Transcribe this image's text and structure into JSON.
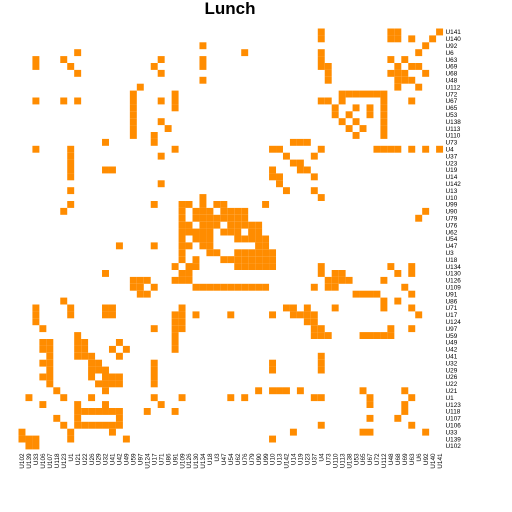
{
  "chart_data": {
    "type": "heatmap",
    "title": "Lunch",
    "xlabel": "",
    "ylabel": "",
    "cell_color": "#ff8c00",
    "background_color": "#ffffff",
    "grid": false,
    "x_tick_labels": [
      "U102",
      "U139",
      "U33",
      "U106",
      "U107",
      "U118",
      "U123",
      "U1",
      "U21",
      "U22",
      "U26",
      "U29",
      "U32",
      "U41",
      "U42",
      "U49",
      "U59",
      "U97",
      "U124",
      "U17",
      "U71",
      "U86",
      "U91",
      "U109",
      "U126",
      "U130",
      "U134",
      "U18",
      "U3",
      "U47",
      "U54",
      "U62",
      "U76",
      "U79",
      "U90",
      "U99",
      "U10",
      "U13",
      "U142",
      "U14",
      "U19",
      "U23",
      "U37",
      "U4",
      "U73",
      "U110",
      "U113",
      "U138",
      "U53",
      "U65",
      "U67",
      "U72",
      "U112",
      "U48",
      "U68",
      "U69",
      "U63",
      "U6",
      "U92",
      "U140",
      "U141"
    ],
    "y_tick_labels": [
      "U141",
      "U140",
      "U92",
      "U6",
      "U63",
      "U69",
      "U68",
      "U48",
      "U112",
      "U72",
      "U67",
      "U65",
      "U53",
      "U138",
      "U113",
      "U110",
      "U73",
      "U4",
      "U37",
      "U23",
      "U19",
      "U14",
      "U142",
      "U13",
      "U10",
      "U99",
      "U90",
      "U79",
      "U76",
      "U62",
      "U54",
      "U47",
      "U3",
      "U18",
      "U134",
      "U130",
      "U126",
      "U109",
      "U91",
      "U86",
      "U71",
      "U17",
      "U124",
      "U97",
      "U59",
      "U49",
      "U42",
      "U41",
      "U32",
      "U29",
      "U26",
      "U22",
      "U21",
      "U1",
      "U123",
      "U118",
      "U107",
      "U106",
      "U33",
      "U139",
      "U102"
    ],
    "cells": [
      [
        0,
        43
      ],
      [
        0,
        53
      ],
      [
        0,
        54
      ],
      [
        0,
        60
      ],
      [
        1,
        43
      ],
      [
        1,
        53
      ],
      [
        1,
        54
      ],
      [
        1,
        56
      ],
      [
        1,
        59
      ],
      [
        2,
        26
      ],
      [
        2,
        58
      ],
      [
        3,
        8
      ],
      [
        3,
        32
      ],
      [
        3,
        43
      ],
      [
        3,
        57
      ],
      [
        4,
        2
      ],
      [
        4,
        6
      ],
      [
        4,
        20
      ],
      [
        4,
        26
      ],
      [
        4,
        43
      ],
      [
        4,
        53
      ],
      [
        4,
        55
      ],
      [
        5,
        2
      ],
      [
        5,
        7
      ],
      [
        5,
        19
      ],
      [
        5,
        26
      ],
      [
        5,
        43
      ],
      [
        5,
        44
      ],
      [
        5,
        54
      ],
      [
        5,
        56
      ],
      [
        5,
        57
      ],
      [
        6,
        8
      ],
      [
        6,
        20
      ],
      [
        6,
        44
      ],
      [
        6,
        53
      ],
      [
        6,
        54
      ],
      [
        6,
        55
      ],
      [
        6,
        58
      ],
      [
        7,
        26
      ],
      [
        7,
        44
      ],
      [
        7,
        54
      ],
      [
        7,
        55
      ],
      [
        7,
        56
      ],
      [
        8,
        17
      ],
      [
        8,
        54
      ],
      [
        8,
        57
      ],
      [
        9,
        16
      ],
      [
        9,
        22
      ],
      [
        9,
        46
      ],
      [
        9,
        47
      ],
      [
        9,
        48
      ],
      [
        9,
        49
      ],
      [
        9,
        50
      ],
      [
        9,
        51
      ],
      [
        9,
        52
      ],
      [
        10,
        2
      ],
      [
        10,
        6
      ],
      [
        10,
        8
      ],
      [
        10,
        16
      ],
      [
        10,
        20
      ],
      [
        10,
        22
      ],
      [
        10,
        43
      ],
      [
        10,
        44
      ],
      [
        10,
        46
      ],
      [
        10,
        52
      ],
      [
        10,
        56
      ],
      [
        11,
        16
      ],
      [
        11,
        22
      ],
      [
        11,
        45
      ],
      [
        11,
        48
      ],
      [
        11,
        50
      ],
      [
        11,
        52
      ],
      [
        12,
        16
      ],
      [
        12,
        45
      ],
      [
        12,
        47
      ],
      [
        12,
        50
      ],
      [
        12,
        52
      ],
      [
        13,
        16
      ],
      [
        13,
        20
      ],
      [
        13,
        46
      ],
      [
        13,
        48
      ],
      [
        13,
        52
      ],
      [
        14,
        16
      ],
      [
        14,
        21
      ],
      [
        14,
        47
      ],
      [
        14,
        49
      ],
      [
        14,
        52
      ],
      [
        15,
        16
      ],
      [
        15,
        19
      ],
      [
        15,
        48
      ],
      [
        15,
        52
      ],
      [
        16,
        12
      ],
      [
        16,
        19
      ],
      [
        16,
        39
      ],
      [
        16,
        40
      ],
      [
        16,
        41
      ],
      [
        17,
        2
      ],
      [
        17,
        7
      ],
      [
        17,
        22
      ],
      [
        17,
        36
      ],
      [
        17,
        37
      ],
      [
        17,
        43
      ],
      [
        17,
        51
      ],
      [
        17,
        52
      ],
      [
        17,
        53
      ],
      [
        17,
        54
      ],
      [
        17,
        56
      ],
      [
        17,
        58
      ],
      [
        17,
        60
      ],
      [
        18,
        7
      ],
      [
        18,
        20
      ],
      [
        18,
        38
      ],
      [
        18,
        42
      ],
      [
        19,
        7
      ],
      [
        19,
        39
      ],
      [
        19,
        40
      ],
      [
        20,
        7
      ],
      [
        20,
        12
      ],
      [
        20,
        13
      ],
      [
        20,
        36
      ],
      [
        20,
        40
      ],
      [
        20,
        41
      ],
      [
        21,
        7
      ],
      [
        21,
        36
      ],
      [
        21,
        37
      ],
      [
        21,
        42
      ],
      [
        22,
        20
      ],
      [
        22,
        37
      ],
      [
        23,
        7
      ],
      [
        23,
        38
      ],
      [
        23,
        42
      ],
      [
        24,
        26
      ],
      [
        24,
        43
      ],
      [
        25,
        7
      ],
      [
        25,
        19
      ],
      [
        25,
        23
      ],
      [
        25,
        24
      ],
      [
        25,
        26
      ],
      [
        25,
        28
      ],
      [
        25,
        29
      ],
      [
        25,
        35
      ],
      [
        26,
        6
      ],
      [
        26,
        23
      ],
      [
        26,
        25
      ],
      [
        26,
        26
      ],
      [
        26,
        27
      ],
      [
        26,
        29
      ],
      [
        26,
        30
      ],
      [
        26,
        31
      ],
      [
        26,
        32
      ],
      [
        26,
        58
      ],
      [
        27,
        23
      ],
      [
        27,
        25
      ],
      [
        27,
        26
      ],
      [
        27,
        27
      ],
      [
        27,
        28
      ],
      [
        27,
        29
      ],
      [
        27,
        30
      ],
      [
        27,
        31
      ],
      [
        27,
        32
      ],
      [
        27,
        57
      ],
      [
        28,
        23
      ],
      [
        28,
        24
      ],
      [
        28,
        26
      ],
      [
        28,
        27
      ],
      [
        28,
        28
      ],
      [
        28,
        30
      ],
      [
        28,
        31
      ],
      [
        28,
        32
      ],
      [
        28,
        33
      ],
      [
        28,
        34
      ],
      [
        29,
        23
      ],
      [
        29,
        24
      ],
      [
        29,
        25
      ],
      [
        29,
        26
      ],
      [
        29,
        27
      ],
      [
        29,
        29
      ],
      [
        29,
        30
      ],
      [
        29,
        31
      ],
      [
        29,
        33
      ],
      [
        29,
        34
      ],
      [
        30,
        23
      ],
      [
        30,
        25
      ],
      [
        30,
        26
      ],
      [
        30,
        27
      ],
      [
        30,
        31
      ],
      [
        30,
        32
      ],
      [
        30,
        33
      ],
      [
        30,
        34
      ],
      [
        30,
        35
      ],
      [
        31,
        14
      ],
      [
        31,
        19
      ],
      [
        31,
        23
      ],
      [
        31,
        24
      ],
      [
        31,
        26
      ],
      [
        31,
        27
      ],
      [
        31,
        34
      ],
      [
        31,
        35
      ],
      [
        32,
        23
      ],
      [
        32,
        27
      ],
      [
        32,
        28
      ],
      [
        32,
        31
      ],
      [
        32,
        32
      ],
      [
        32,
        33
      ],
      [
        32,
        34
      ],
      [
        32,
        35
      ],
      [
        32,
        36
      ],
      [
        33,
        23
      ],
      [
        33,
        25
      ],
      [
        33,
        29
      ],
      [
        33,
        30
      ],
      [
        33,
        31
      ],
      [
        33,
        32
      ],
      [
        33,
        33
      ],
      [
        33,
        34
      ],
      [
        33,
        35
      ],
      [
        33,
        36
      ],
      [
        34,
        22
      ],
      [
        34,
        24
      ],
      [
        34,
        25
      ],
      [
        34,
        31
      ],
      [
        34,
        32
      ],
      [
        34,
        33
      ],
      [
        34,
        34
      ],
      [
        34,
        35
      ],
      [
        34,
        36
      ],
      [
        34,
        43
      ],
      [
        34,
        53
      ],
      [
        34,
        56
      ],
      [
        35,
        12
      ],
      [
        35,
        23
      ],
      [
        35,
        24
      ],
      [
        35,
        43
      ],
      [
        35,
        45
      ],
      [
        35,
        46
      ],
      [
        35,
        54
      ],
      [
        35,
        56
      ],
      [
        36,
        16
      ],
      [
        36,
        17
      ],
      [
        36,
        18
      ],
      [
        36,
        22
      ],
      [
        36,
        23
      ],
      [
        36,
        24
      ],
      [
        36,
        44
      ],
      [
        36,
        45
      ],
      [
        36,
        46
      ],
      [
        36,
        47
      ],
      [
        36,
        52
      ],
      [
        37,
        16
      ],
      [
        37,
        17
      ],
      [
        37,
        19
      ],
      [
        37,
        25
      ],
      [
        37,
        26
      ],
      [
        37,
        27
      ],
      [
        37,
        28
      ],
      [
        37,
        29
      ],
      [
        37,
        30
      ],
      [
        37,
        31
      ],
      [
        37,
        32
      ],
      [
        37,
        33
      ],
      [
        37,
        34
      ],
      [
        37,
        35
      ],
      [
        37,
        42
      ],
      [
        37,
        44
      ],
      [
        37,
        45
      ],
      [
        37,
        55
      ],
      [
        38,
        17
      ],
      [
        38,
        18
      ],
      [
        38,
        48
      ],
      [
        38,
        49
      ],
      [
        38,
        50
      ],
      [
        38,
        51
      ],
      [
        38,
        56
      ],
      [
        39,
        6
      ],
      [
        39,
        52
      ],
      [
        39,
        54
      ],
      [
        40,
        2
      ],
      [
        40,
        7
      ],
      [
        40,
        12
      ],
      [
        40,
        13
      ],
      [
        40,
        23
      ],
      [
        40,
        38
      ],
      [
        40,
        39
      ],
      [
        40,
        41
      ],
      [
        40,
        45
      ],
      [
        40,
        52
      ],
      [
        40,
        56
      ],
      [
        41,
        2
      ],
      [
        41,
        7
      ],
      [
        41,
        12
      ],
      [
        41,
        13
      ],
      [
        41,
        22
      ],
      [
        41,
        23
      ],
      [
        41,
        25
      ],
      [
        41,
        30
      ],
      [
        41,
        36
      ],
      [
        41,
        39
      ],
      [
        41,
        40
      ],
      [
        41,
        41
      ],
      [
        41,
        42
      ],
      [
        41,
        57
      ],
      [
        42,
        2
      ],
      [
        42,
        22
      ],
      [
        42,
        23
      ],
      [
        42,
        41
      ],
      [
        42,
        42
      ],
      [
        43,
        3
      ],
      [
        43,
        19
      ],
      [
        43,
        22
      ],
      [
        43,
        23
      ],
      [
        43,
        42
      ],
      [
        43,
        43
      ],
      [
        43,
        53
      ],
      [
        43,
        56
      ],
      [
        44,
        8
      ],
      [
        44,
        22
      ],
      [
        44,
        42
      ],
      [
        44,
        43
      ],
      [
        44,
        44
      ],
      [
        44,
        49
      ],
      [
        44,
        50
      ],
      [
        44,
        51
      ],
      [
        44,
        52
      ],
      [
        44,
        53
      ],
      [
        45,
        3
      ],
      [
        45,
        4
      ],
      [
        45,
        8
      ],
      [
        45,
        9
      ],
      [
        45,
        14
      ],
      [
        45,
        22
      ],
      [
        46,
        3
      ],
      [
        46,
        4
      ],
      [
        46,
        8
      ],
      [
        46,
        9
      ],
      [
        46,
        13
      ],
      [
        46,
        15
      ],
      [
        46,
        22
      ],
      [
        47,
        4
      ],
      [
        47,
        8
      ],
      [
        47,
        9
      ],
      [
        47,
        10
      ],
      [
        47,
        14
      ],
      [
        47,
        43
      ],
      [
        48,
        3
      ],
      [
        48,
        4
      ],
      [
        48,
        10
      ],
      [
        48,
        11
      ],
      [
        48,
        19
      ],
      [
        48,
        36
      ],
      [
        48,
        43
      ],
      [
        49,
        4
      ],
      [
        49,
        10
      ],
      [
        49,
        11
      ],
      [
        49,
        12
      ],
      [
        49,
        19
      ],
      [
        49,
        36
      ],
      [
        49,
        43
      ],
      [
        50,
        3
      ],
      [
        50,
        4
      ],
      [
        50,
        10
      ],
      [
        50,
        12
      ],
      [
        50,
        13
      ],
      [
        50,
        14
      ],
      [
        50,
        19
      ],
      [
        51,
        4
      ],
      [
        51,
        11
      ],
      [
        51,
        12
      ],
      [
        51,
        13
      ],
      [
        51,
        14
      ],
      [
        51,
        19
      ],
      [
        52,
        5
      ],
      [
        52,
        12
      ],
      [
        52,
        34
      ],
      [
        52,
        36
      ],
      [
        52,
        37
      ],
      [
        52,
        38
      ],
      [
        52,
        40
      ],
      [
        52,
        49
      ],
      [
        52,
        55
      ],
      [
        53,
        1
      ],
      [
        53,
        6
      ],
      [
        53,
        10
      ],
      [
        53,
        19
      ],
      [
        53,
        23
      ],
      [
        53,
        30
      ],
      [
        53,
        32
      ],
      [
        53,
        42
      ],
      [
        53,
        43
      ],
      [
        53,
        50
      ],
      [
        53,
        56
      ],
      [
        54,
        3
      ],
      [
        54,
        8
      ],
      [
        54,
        12
      ],
      [
        54,
        20
      ],
      [
        54,
        50
      ],
      [
        54,
        55
      ],
      [
        55,
        8
      ],
      [
        55,
        9
      ],
      [
        55,
        10
      ],
      [
        55,
        11
      ],
      [
        55,
        12
      ],
      [
        55,
        13
      ],
      [
        55,
        14
      ],
      [
        55,
        18
      ],
      [
        55,
        22
      ],
      [
        55,
        55
      ],
      [
        56,
        5
      ],
      [
        56,
        8
      ],
      [
        56,
        14
      ],
      [
        56,
        50
      ],
      [
        56,
        54
      ],
      [
        57,
        6
      ],
      [
        57,
        8
      ],
      [
        57,
        9
      ],
      [
        57,
        10
      ],
      [
        57,
        11
      ],
      [
        57,
        12
      ],
      [
        57,
        13
      ],
      [
        57,
        14
      ],
      [
        57,
        43
      ],
      [
        57,
        56
      ],
      [
        58,
        0
      ],
      [
        58,
        7
      ],
      [
        58,
        13
      ],
      [
        58,
        39
      ],
      [
        58,
        49
      ],
      [
        58,
        50
      ],
      [
        58,
        58
      ],
      [
        59,
        0
      ],
      [
        59,
        1
      ],
      [
        59,
        2
      ],
      [
        59,
        7
      ],
      [
        59,
        15
      ],
      [
        59,
        36
      ],
      [
        60,
        1
      ],
      [
        60,
        2
      ]
    ]
  }
}
